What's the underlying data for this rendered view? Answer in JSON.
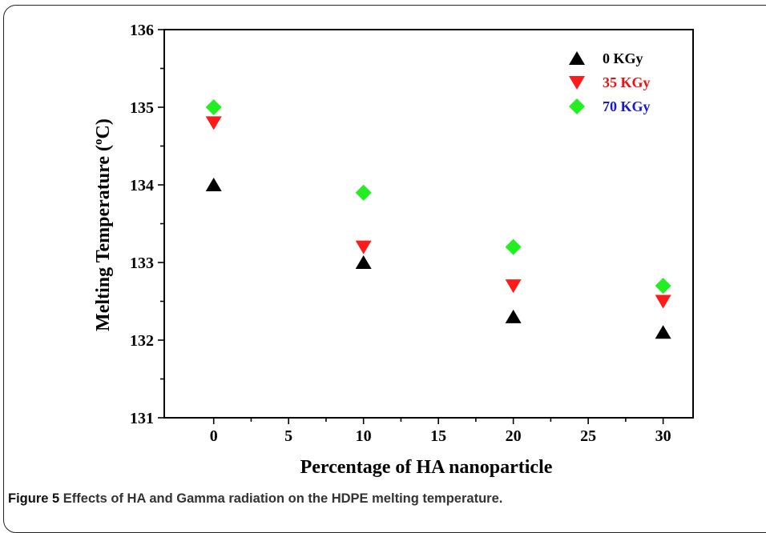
{
  "caption": {
    "label": "Figure 5",
    "text": "Effects of HA and Gamma radiation on the HDPE melting temperature."
  },
  "chart_data": {
    "type": "scatter",
    "title": "",
    "xlabel": "Percentage of HA nanoparticle",
    "ylabel_main": "Melting Temperature (",
    "ylabel_sup": "o",
    "ylabel_end": "C)",
    "xlim": [
      -3.3,
      32
    ],
    "ylim": [
      131,
      136
    ],
    "x_ticks": [
      0,
      5,
      10,
      15,
      20,
      25,
      30
    ],
    "y_ticks": [
      131,
      132,
      133,
      134,
      135,
      136
    ],
    "legend_placement": "top-right",
    "x": [
      0,
      10,
      20,
      30
    ],
    "series": [
      {
        "name": "0 KGy",
        "marker": "triangle-up",
        "color": "#000000",
        "label_color": "#000000",
        "values": [
          134.0,
          133.0,
          132.3,
          132.1
        ]
      },
      {
        "name": "35 KGy",
        "marker": "triangle-down",
        "color": "#ff1a1a",
        "label_color": "#ee1111",
        "values": [
          134.8,
          133.2,
          132.7,
          132.5
        ]
      },
      {
        "name": "70 KGy",
        "marker": "diamond",
        "color": "#22ee22",
        "label_color": "#1a1acc",
        "values": [
          135.0,
          133.9,
          133.2,
          132.7
        ]
      }
    ]
  }
}
